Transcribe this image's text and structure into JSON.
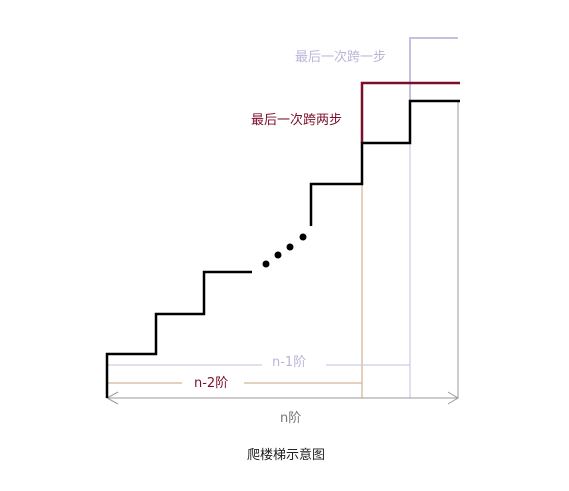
{
  "diagram": {
    "caption": "爬楼梯示意图",
    "labels": {
      "last_one_step": "最后一次跨一步",
      "last_two_steps": "最后一次跨两步",
      "n_minus_1": "n-1阶",
      "n_minus_2": "n-2阶",
      "n": "n阶"
    },
    "colors": {
      "stairs": "#000000",
      "last_one_step": "#c4c0e0",
      "last_two_steps": "#7a0f2a",
      "n_minus_2_line": "#c9a27e",
      "n_minus_1_line": "#c4c0e0",
      "n_line": "#9a9a9a"
    }
  }
}
